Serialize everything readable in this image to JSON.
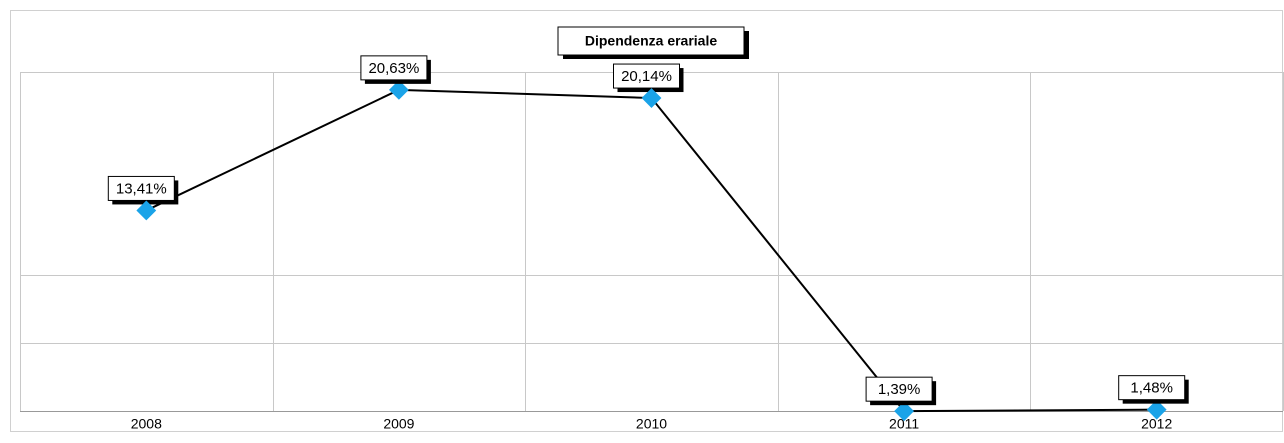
{
  "chart_data": {
    "type": "line",
    "title": "Dipendenza erariale",
    "categories": [
      "2008",
      "2009",
      "2010",
      "2011",
      "2012"
    ],
    "series": [
      {
        "name": "Dipendenza erariale",
        "color": "#000000",
        "marker_color": "#1aa3e8",
        "values": [
          13.41,
          20.63,
          20.14,
          1.39,
          1.48
        ],
        "value_labels": [
          "13,41%",
          "20,63%",
          "20,14%",
          "1,39%",
          "1,48%"
        ]
      }
    ],
    "ylim": [
      1.4,
      21.7
    ],
    "grid": true
  }
}
